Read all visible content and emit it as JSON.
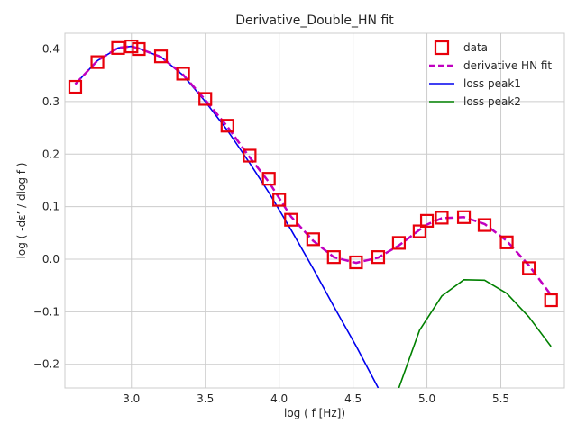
{
  "chart_data": {
    "type": "line",
    "title": "Derivative_Double_HN fit",
    "xlabel": "log ( f [Hz])",
    "ylabel": "log ( -dε’ / dlog f )",
    "xlim": [
      2.55,
      5.93
    ],
    "ylim": [
      -0.245,
      0.43
    ],
    "xticks": [
      3.0,
      3.5,
      4.0,
      4.5,
      5.0,
      5.5
    ],
    "xtick_labels": [
      "3.0",
      "3.5",
      "4.0",
      "4.5",
      "5.0",
      "5.5"
    ],
    "yticks": [
      -0.2,
      -0.1,
      0.0,
      0.1,
      0.2,
      0.3,
      0.4
    ],
    "ytick_labels": [
      "−0.2",
      "−0.1",
      "0.0",
      "0.1",
      "0.2",
      "0.3",
      "0.4"
    ],
    "grid": true,
    "legend_position": "top-right",
    "series": [
      {
        "name": "data",
        "kind": "markers",
        "marker": "square",
        "color": "#e8000b",
        "x": [
          2.62,
          2.77,
          2.91,
          3.0,
          3.05,
          3.2,
          3.35,
          3.5,
          3.65,
          3.8,
          3.93,
          4.0,
          4.08,
          4.23,
          4.37,
          4.52,
          4.67,
          4.81,
          4.95,
          5.0,
          5.1,
          5.25,
          5.39,
          5.54,
          5.69,
          5.84
        ],
        "y": [
          0.328,
          0.375,
          0.402,
          0.405,
          0.4,
          0.386,
          0.353,
          0.305,
          0.254,
          0.197,
          0.153,
          0.113,
          0.075,
          0.038,
          0.004,
          -0.006,
          0.004,
          0.031,
          0.053,
          0.073,
          0.079,
          0.08,
          0.065,
          0.032,
          -0.017,
          -0.078
        ]
      },
      {
        "name": "derivative HN fit",
        "kind": "line",
        "dash": "dashed",
        "color": "#c000c0",
        "x": [
          2.62,
          2.77,
          2.91,
          3.0,
          3.05,
          3.2,
          3.35,
          3.5,
          3.65,
          3.8,
          3.93,
          4.08,
          4.23,
          4.37,
          4.52,
          4.67,
          4.81,
          4.95,
          5.0,
          5.1,
          5.25,
          5.39,
          5.54,
          5.69,
          5.84
        ],
        "y": [
          0.333,
          0.378,
          0.402,
          0.405,
          0.401,
          0.385,
          0.351,
          0.303,
          0.252,
          0.194,
          0.147,
          0.081,
          0.035,
          0.004,
          -0.007,
          0.003,
          0.026,
          0.056,
          0.066,
          0.078,
          0.08,
          0.067,
          0.035,
          -0.012,
          -0.068
        ]
      },
      {
        "name": "loss peak1",
        "kind": "line",
        "dash": "solid",
        "color": "#0000ee",
        "x": [
          2.62,
          2.77,
          2.91,
          3.0,
          3.05,
          3.2,
          3.35,
          3.5,
          3.65,
          3.8,
          3.93,
          4.08,
          4.23,
          4.37,
          4.52,
          4.67
        ],
        "y": [
          0.333,
          0.378,
          0.402,
          0.405,
          0.401,
          0.385,
          0.35,
          0.3,
          0.245,
          0.183,
          0.127,
          0.056,
          -0.018,
          -0.09,
          -0.165,
          -0.245
        ]
      },
      {
        "name": "loss peak2",
        "kind": "line",
        "dash": "solid",
        "color": "#008000",
        "x": [
          4.81,
          4.95,
          5.1,
          5.25,
          5.39,
          5.54,
          5.69,
          5.84
        ],
        "y": [
          -0.245,
          -0.135,
          -0.07,
          -0.039,
          -0.04,
          -0.065,
          -0.11,
          -0.166
        ]
      }
    ]
  }
}
